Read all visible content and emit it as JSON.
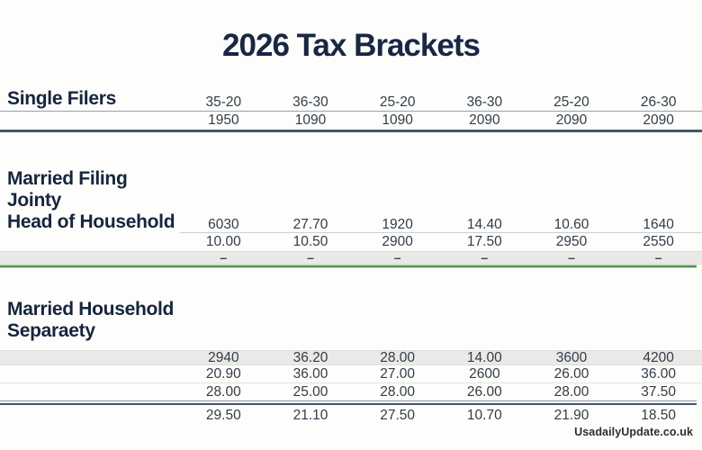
{
  "chart_data": {
    "type": "table",
    "title": "2026 Tax Brackets",
    "columns": 6,
    "sections": [
      {
        "id": "single-filers",
        "heading_lines": [
          "Single Filers"
        ],
        "rows": [
          {
            "values": [
              "35-20",
              "36-30",
              "25-20",
              "36-30",
              "25-20",
              "26-30"
            ]
          },
          {
            "values": [
              "1950",
              "1090",
              "1090",
              "2090",
              "2090",
              "2090"
            ]
          }
        ]
      },
      {
        "id": "married-filing-jointly-head-of-household",
        "heading_lines": [
          "Married Filing Jointy",
          "Head of Household"
        ],
        "rows": [
          {
            "values": [
              "6030",
              "27.70",
              "1920",
              "14.40",
              "10.60",
              "1640"
            ]
          },
          {
            "values": [
              "10.00",
              "10.50",
              "2900",
              "17.50",
              "2950",
              "2550"
            ]
          },
          {
            "values": [
              "–",
              "–",
              "–",
              "–",
              "–",
              "–"
            ]
          }
        ]
      },
      {
        "id": "married-household-separately",
        "heading_lines": [
          "Married Household",
          "Separaety"
        ],
        "rows": [
          {
            "values": [
              "2940",
              "36.20",
              "28.00",
              "14.00",
              "3600",
              "4200"
            ]
          },
          {
            "values": [
              "20.90",
              "36.00",
              "27.00",
              "2600",
              "26.00",
              "36.00"
            ]
          },
          {
            "values": [
              "28.00",
              "25.00",
              "28.00",
              "26.00",
              "28.00",
              "37.50"
            ]
          },
          {
            "values": [
              "29.50",
              "21.10",
              "27.50",
              "10.70",
              "21.90",
              "18.50"
            ]
          }
        ]
      }
    ],
    "layout_hints": {
      "grid": "off",
      "legend": "none"
    }
  },
  "footer": {
    "label": "UsadailyUpdate.co.uk"
  },
  "colors": {
    "heading_navy": "#16253e",
    "number_text": "#333c49",
    "thick_rule": "#46566b",
    "thin_rule": "#97a1ac",
    "band_gray": "#e9e9e7",
    "divider_green": "#4f9150",
    "background": "#fdfdfb"
  }
}
